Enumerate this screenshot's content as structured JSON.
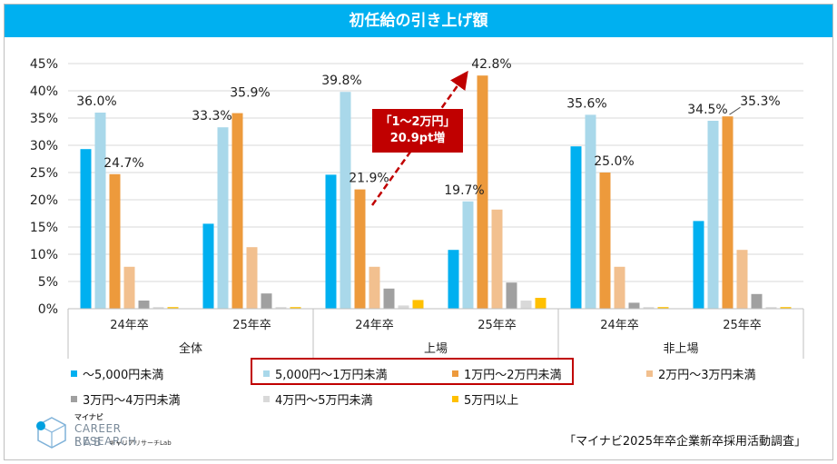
{
  "title": "初任給の引き上げ額",
  "chart_data": {
    "type": "bar",
    "ylim": [
      0,
      45
    ],
    "yticks": [
      "0%",
      "5%",
      "10%",
      "15%",
      "20%",
      "25%",
      "30%",
      "35%",
      "40%",
      "45%"
    ],
    "groups": [
      {
        "label": "全体",
        "categories": [
          "24年卒",
          "25年卒"
        ]
      },
      {
        "label": "上場",
        "categories": [
          "24年卒",
          "25年卒"
        ]
      },
      {
        "label": "非上場",
        "categories": [
          "24年卒",
          "25年卒"
        ]
      }
    ],
    "series": [
      {
        "name": "～5,000円未満",
        "color": "#00b0f0",
        "values": [
          29.3,
          15.6,
          24.6,
          10.8,
          29.8,
          16.1
        ]
      },
      {
        "name": "5,000円～1万円未満",
        "color": "#a9d8ea",
        "values": [
          36.0,
          33.3,
          39.8,
          19.7,
          35.6,
          34.5
        ]
      },
      {
        "name": "1万円～2万円未満",
        "color": "#ed9a3c",
        "values": [
          24.7,
          35.9,
          21.9,
          42.8,
          25.0,
          35.3
        ]
      },
      {
        "name": "2万円～3万円未満",
        "color": "#f2c08f",
        "values": [
          7.7,
          11.3,
          7.7,
          18.2,
          7.7,
          10.8
        ]
      },
      {
        "name": "3万円～4万円未満",
        "color": "#a0a0a0",
        "values": [
          1.5,
          2.8,
          3.7,
          4.8,
          1.1,
          2.7
        ]
      },
      {
        "name": "4万円～5万円未満",
        "color": "#d9d9d9",
        "values": [
          0.3,
          0.3,
          0.6,
          1.5,
          0.3,
          0.3
        ]
      },
      {
        "name": "5万円以上",
        "color": "#ffc000",
        "values": [
          0.3,
          0.3,
          1.6,
          2.0,
          0.3,
          0.3
        ]
      }
    ],
    "data_labels": [
      {
        "series": 1,
        "index": 0,
        "text": "36.0%"
      },
      {
        "series": 2,
        "index": 0,
        "text": "24.7%"
      },
      {
        "series": 1,
        "index": 1,
        "text": "33.3%"
      },
      {
        "series": 2,
        "index": 1,
        "text": "35.9%"
      },
      {
        "series": 1,
        "index": 2,
        "text": "39.8%"
      },
      {
        "series": 2,
        "index": 2,
        "text": "21.9%"
      },
      {
        "series": 1,
        "index": 3,
        "text": "19.7%"
      },
      {
        "series": 2,
        "index": 3,
        "text": "42.8%"
      },
      {
        "series": 1,
        "index": 4,
        "text": "35.6%"
      },
      {
        "series": 2,
        "index": 4,
        "text": "25.0%"
      },
      {
        "series": 1,
        "index": 5,
        "text": "34.5%"
      },
      {
        "series": 2,
        "index": 5,
        "text": "35.3%"
      }
    ],
    "legend": "bottom"
  },
  "callout": {
    "line1": "「1～2万円」",
    "line2": "20.9pt増"
  },
  "logo": {
    "brand": "マイナビ",
    "line1": "CAREER RESEARCH",
    "line2": "LAB",
    "sub": "キャリアリサーチLab"
  },
  "source": "「マイナビ2025年卒企業新卒採用活動調査」"
}
